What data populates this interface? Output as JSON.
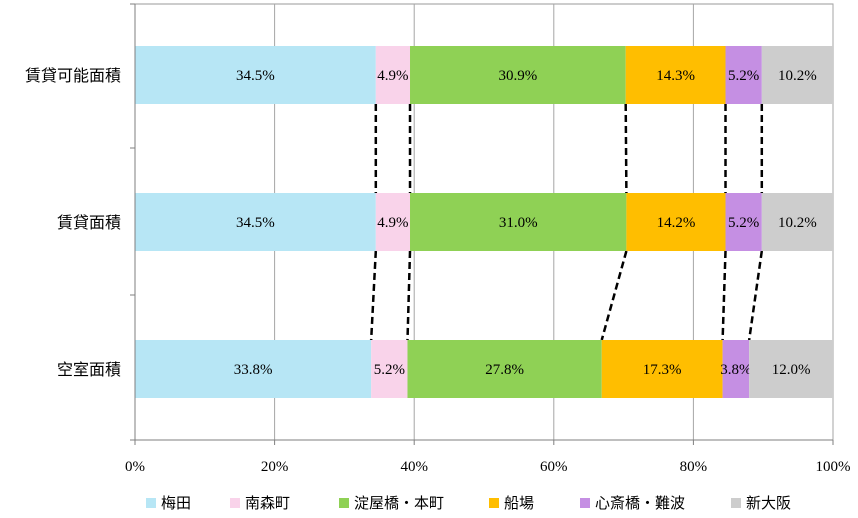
{
  "chart_data": {
    "type": "bar",
    "orientation": "horizontal",
    "stacked": "percent",
    "categories": [
      "賃貸可能面積",
      "賃貸面積",
      "空室面積"
    ],
    "series": [
      {
        "name": "梅田",
        "color": "#b7e6f5",
        "values": [
          34.5,
          34.5,
          33.8
        ],
        "labels": [
          "34.5%",
          "34.5%",
          "33.8%"
        ]
      },
      {
        "name": "南森町",
        "color": "#f9d3ea",
        "values": [
          4.9,
          4.9,
          5.2
        ],
        "labels": [
          "4.9%",
          "4.9%",
          "5.2%"
        ]
      },
      {
        "name": "淀屋橋・本町",
        "color": "#8fd155",
        "values": [
          30.9,
          31.0,
          27.8
        ],
        "labels": [
          "30.9%",
          "31.0%",
          "27.8%"
        ]
      },
      {
        "name": "船場",
        "color": "#ffbe00",
        "values": [
          14.3,
          14.2,
          17.3
        ],
        "labels": [
          "14.3%",
          "14.2%",
          "17.3%"
        ]
      },
      {
        "name": "心斎橋・難波",
        "color": "#c58fe3",
        "values": [
          5.2,
          5.2,
          3.8
        ],
        "labels": [
          "5.2%",
          "5.2%",
          "3.8%"
        ]
      },
      {
        "name": "新大阪",
        "color": "#cdcdcd",
        "values": [
          10.2,
          10.2,
          12.0
        ],
        "labels": [
          "10.2%",
          "10.2%",
          "12.0%"
        ]
      }
    ],
    "x_ticks": [
      "0%",
      "20%",
      "40%",
      "60%",
      "80%",
      "100%"
    ],
    "xlim": [
      0,
      100
    ],
    "grid": "vertical",
    "series_lines": "dashed connectors between bars",
    "legend_position": "bottom"
  }
}
